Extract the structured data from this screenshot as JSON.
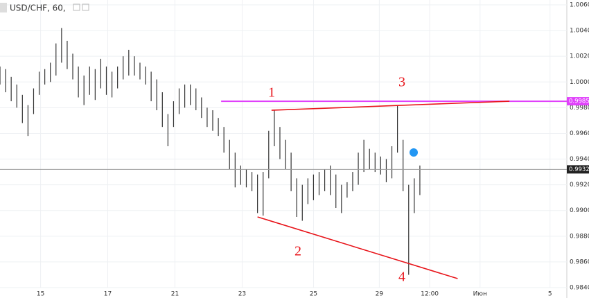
{
  "chart_data": {
    "type": "ohlc",
    "title": "USD/CHF, 60,",
    "x": [
      0,
      4,
      8,
      12,
      16,
      20,
      24,
      28,
      32,
      36,
      40,
      44,
      48,
      52,
      56,
      60,
      64,
      68,
      72,
      76,
      80,
      84,
      88,
      92,
      96,
      100,
      104,
      108,
      112,
      116,
      120,
      124,
      128,
      132,
      136,
      140,
      144,
      148,
      152,
      156,
      160,
      164,
      168,
      172,
      176,
      180,
      184,
      188,
      192,
      196,
      200,
      204,
      208,
      212,
      216,
      220,
      224,
      228,
      232,
      236,
      240,
      244,
      248,
      252,
      256,
      260,
      264,
      268,
      272,
      276,
      280,
      284,
      288,
      292,
      296,
      300
    ],
    "series": [
      {
        "name": "USD/CHF",
        "color": "#333333",
        "high": [
          1.0012,
          1.001,
          1.0004,
          0.9998,
          0.999,
          0.9982,
          0.9995,
          1.0008,
          1.001,
          1.0015,
          1.003,
          1.0042,
          1.0032,
          1.0022,
          1.0012,
          1.0005,
          1.0012,
          1.001,
          1.0018,
          1.0012,
          1.0008,
          1.0012,
          1.002,
          1.0025,
          1.002,
          1.0015,
          1.0012,
          1.0008,
          1.0002,
          0.9992,
          0.9975,
          0.9985,
          0.9995,
          0.9998,
          0.9998,
          0.9995,
          0.9988,
          0.998,
          0.9978,
          0.9972,
          0.9965,
          0.9955,
          0.9945,
          0.9935,
          0.9932,
          0.993,
          0.9928,
          0.993,
          0.9962,
          0.9978,
          0.9965,
          0.9955,
          0.9945,
          0.9925,
          0.992,
          0.9925,
          0.9928,
          0.993,
          0.9932,
          0.9935,
          0.9928,
          0.992,
          0.9922,
          0.993,
          0.9945,
          0.9955,
          0.9948,
          0.9945,
          0.9942,
          0.994,
          0.995,
          0.9982,
          0.9955,
          0.992,
          0.9925,
          0.9935
        ],
        "low": [
          0.9998,
          0.9992,
          0.9985,
          0.998,
          0.9968,
          0.9958,
          0.9975,
          0.999,
          0.9998,
          1.0,
          1.0005,
          1.0015,
          1.001,
          1.0002,
          0.9988,
          0.9982,
          0.999,
          0.9986,
          0.9995,
          0.999,
          0.9988,
          0.9995,
          1.0002,
          1.0005,
          1.0005,
          1.0002,
          0.9998,
          0.9985,
          0.9978,
          0.9965,
          0.995,
          0.9965,
          0.9975,
          0.998,
          0.9982,
          0.9978,
          0.9972,
          0.9965,
          0.9962,
          0.9958,
          0.9945,
          0.9932,
          0.9918,
          0.992,
          0.9918,
          0.9915,
          0.9898,
          0.9896,
          0.9925,
          0.995,
          0.994,
          0.9932,
          0.9915,
          0.9895,
          0.9892,
          0.9905,
          0.9908,
          0.9912,
          0.9915,
          0.9912,
          0.9902,
          0.9898,
          0.991,
          0.9915,
          0.992,
          0.993,
          0.9932,
          0.993,
          0.9928,
          0.9922,
          0.9925,
          0.9945,
          0.9915,
          0.985,
          0.9898,
          0.9912
        ]
      }
    ],
    "xlim": [
      0,
      405
    ],
    "xticks": [
      {
        "value": 29,
        "label": "15"
      },
      {
        "value": 77,
        "label": "17"
      },
      {
        "value": 125,
        "label": "21"
      },
      {
        "value": 173,
        "label": "23"
      },
      {
        "value": 224,
        "label": "25"
      },
      {
        "value": 271,
        "label": "29"
      },
      {
        "value": 307,
        "label": "12:00"
      },
      {
        "value": 343,
        "label": "Июн"
      },
      {
        "value": 393,
        "label": "5"
      }
    ],
    "ylim": [
      0.984,
      1.006
    ],
    "yticks": [
      {
        "value": 0.984,
        "label": "0.9840"
      },
      {
        "value": 0.986,
        "label": "0.9860"
      },
      {
        "value": 0.988,
        "label": "0.9880"
      },
      {
        "value": 0.99,
        "label": "0.9900"
      },
      {
        "value": 0.992,
        "label": "0.9920"
      },
      {
        "value": 0.994,
        "label": "0.9940"
      },
      {
        "value": 0.996,
        "label": "0.9960"
      },
      {
        "value": 0.998,
        "label": "0.9980"
      },
      {
        "value": 1.0,
        "label": "1.0000"
      },
      {
        "value": 1.002,
        "label": "1.0020"
      },
      {
        "value": 1.004,
        "label": "1.0040"
      },
      {
        "value": 1.006,
        "label": "1.0060"
      }
    ],
    "grid": true,
    "price_lines": [
      {
        "value": 0.9985,
        "color": "#e040fb",
        "start": 158
      },
      {
        "value": 0.9932,
        "color": "#999999",
        "start": 0
      }
    ],
    "trendlines": [
      {
        "color": "#e8151b",
        "x": [
          194,
          364
        ],
        "y": [
          0.9978,
          0.9985
        ]
      },
      {
        "color": "#e8151b",
        "x": [
          184,
          327
        ],
        "y": [
          0.9895,
          0.9847
        ]
      }
    ],
    "annotations": [
      "1",
      "3",
      "2",
      "4"
    ]
  }
}
